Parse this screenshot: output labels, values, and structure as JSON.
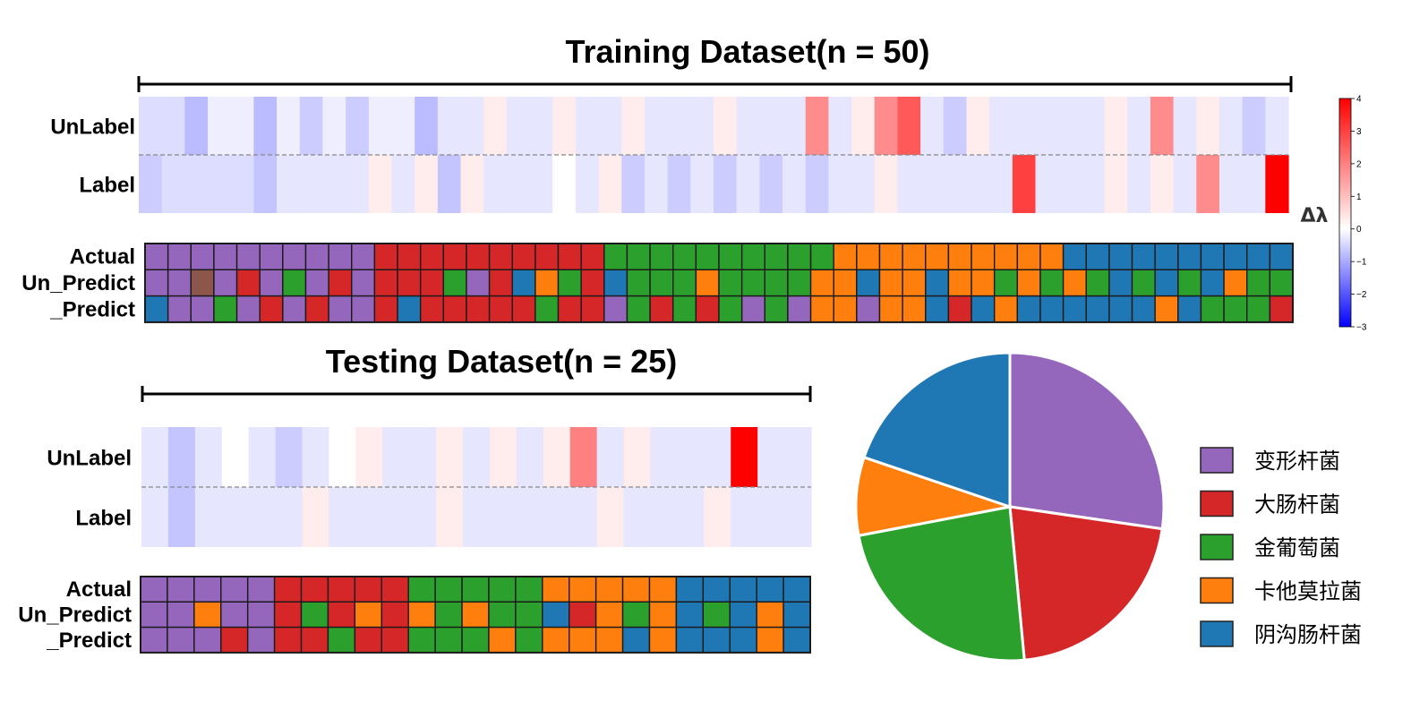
{
  "colors": {
    "变形杆菌": "#9467bd",
    "大肠杆菌": "#d62728",
    "金葡萄菌": "#2ca02c",
    "卡他莫拉菌": "#ff7f0e",
    "阴沟肠杆菌": "#1f77b4",
    "Brown": "#8c564b"
  },
  "chart_data": [
    {
      "type": "heatmap",
      "title": "Training Dataset(n = 50)",
      "row_labels": [
        "UnLabel",
        "Label"
      ],
      "colorbar": {
        "label": "Δλ",
        "range": [
          -3,
          4
        ],
        "ticks": [
          4,
          3,
          2,
          1,
          0,
          -1,
          -2,
          -3
        ],
        "tick_labels": [
          "4",
          "3",
          "2",
          "1",
          "0",
          "−1",
          "−2",
          "−3"
        ]
      },
      "values": {
        "UnLabel": [
          -0.4,
          -0.4,
          -0.8,
          -0.2,
          -0.2,
          -0.8,
          -0.2,
          -0.6,
          -0.2,
          -0.6,
          -0.2,
          -0.2,
          -0.8,
          -0.3,
          -0.3,
          0.3,
          -0.3,
          -0.3,
          0.3,
          -0.3,
          -0.3,
          0.3,
          -0.3,
          -0.3,
          -0.3,
          0.3,
          -0.3,
          -0.3,
          -0.3,
          1.8,
          -0.3,
          0.3,
          1.8,
          2.6,
          -0.3,
          -0.6,
          0.3,
          -0.3,
          -0.3,
          -0.3,
          -0.3,
          -0.3,
          0.3,
          -0.3,
          1.8,
          -0.3,
          0.3,
          -0.3,
          -0.6,
          -0.3
        ],
        "Label": [
          -0.6,
          -0.4,
          -0.4,
          -0.4,
          -0.4,
          -0.7,
          -0.3,
          -0.3,
          -0.3,
          -0.3,
          0.3,
          -0.3,
          0.3,
          -0.7,
          0.3,
          -0.3,
          -0.3,
          -0.3,
          0.0,
          -0.3,
          0.3,
          -0.6,
          -0.3,
          -0.6,
          -0.3,
          -0.6,
          -0.3,
          -0.6,
          -0.3,
          -0.6,
          -0.3,
          -0.3,
          0.3,
          -0.3,
          -0.3,
          -0.3,
          -0.3,
          -0.3,
          3.0,
          -0.3,
          -0.3,
          -0.3,
          0.3,
          -0.3,
          0.3,
          -0.3,
          1.8,
          -0.3,
          -0.3,
          4.0
        ]
      }
    },
    {
      "type": "table",
      "row_labels": [
        "Actual",
        "Un_Predict",
        "_Predict"
      ],
      "rows": {
        "Actual": [
          0,
          0,
          0,
          0,
          0,
          0,
          0,
          0,
          0,
          0,
          1,
          1,
          1,
          1,
          1,
          1,
          1,
          1,
          1,
          1,
          2,
          2,
          2,
          2,
          2,
          2,
          2,
          2,
          2,
          2,
          3,
          3,
          3,
          3,
          3,
          3,
          3,
          3,
          3,
          3,
          4,
          4,
          4,
          4,
          4,
          4,
          4,
          4,
          4,
          4
        ],
        "Un_Predict": [
          0,
          0,
          5,
          0,
          1,
          0,
          2,
          0,
          1,
          0,
          1,
          1,
          1,
          2,
          0,
          1,
          4,
          3,
          2,
          1,
          4,
          2,
          2,
          2,
          3,
          2,
          2,
          2,
          2,
          3,
          3,
          4,
          3,
          3,
          4,
          3,
          3,
          2,
          3,
          2,
          3,
          2,
          4,
          2,
          4,
          2,
          4,
          3,
          2,
          2
        ],
        "_Predict": [
          4,
          0,
          0,
          2,
          0,
          1,
          0,
          1,
          0,
          0,
          1,
          4,
          1,
          1,
          1,
          1,
          1,
          2,
          1,
          1,
          0,
          2,
          1,
          2,
          1,
          2,
          0,
          2,
          0,
          3,
          3,
          0,
          3,
          3,
          4,
          1,
          4,
          3,
          4,
          4,
          4,
          4,
          4,
          4,
          3,
          4,
          2,
          2,
          2,
          1
        ]
      },
      "category_index": [
        "变形杆菌",
        "大肠杆菌",
        "金葡萄菌",
        "卡他莫拉菌",
        "阴沟肠杆菌",
        "Brown"
      ]
    },
    {
      "type": "heatmap",
      "title": "Testing Dataset(n = 25)",
      "row_labels": [
        "UnLabel",
        "Label"
      ],
      "values": {
        "UnLabel": [
          -0.3,
          -0.7,
          -0.3,
          0.0,
          -0.3,
          -0.6,
          -0.3,
          0.0,
          0.3,
          -0.3,
          -0.3,
          0.3,
          -0.3,
          0.3,
          -0.3,
          0.3,
          2.0,
          -0.3,
          0.3,
          -0.3,
          -0.3,
          -0.3,
          4.0,
          -0.3,
          -0.3
        ],
        "Label": [
          -0.3,
          -0.7,
          -0.3,
          -0.3,
          -0.3,
          -0.3,
          0.3,
          -0.3,
          -0.3,
          -0.3,
          -0.3,
          0.3,
          -0.3,
          -0.3,
          -0.3,
          -0.3,
          -0.3,
          0.3,
          -0.3,
          -0.3,
          -0.3,
          0.3,
          -0.3,
          -0.3,
          -0.3
        ]
      }
    },
    {
      "type": "table",
      "row_labels": [
        "Actual",
        "Un_Predict",
        "_Predict"
      ],
      "rows": {
        "Actual": [
          0,
          0,
          0,
          0,
          0,
          1,
          1,
          1,
          1,
          1,
          2,
          2,
          2,
          2,
          2,
          3,
          3,
          3,
          3,
          3,
          4,
          4,
          4,
          4,
          4
        ],
        "Un_Predict": [
          0,
          0,
          3,
          0,
          0,
          1,
          2,
          1,
          3,
          1,
          3,
          2,
          3,
          2,
          2,
          4,
          1,
          3,
          2,
          3,
          4,
          2,
          4,
          3,
          4
        ],
        "_Predict": [
          0,
          0,
          0,
          1,
          0,
          1,
          1,
          2,
          1,
          1,
          2,
          2,
          2,
          3,
          2,
          3,
          3,
          3,
          4,
          3,
          4,
          4,
          4,
          3,
          4
        ]
      },
      "category_index": [
        "变形杆菌",
        "大肠杆菌",
        "金葡萄菌",
        "卡他莫拉菌",
        "阴沟肠杆菌"
      ]
    },
    {
      "type": "pie",
      "labels": [
        "变形杆菌",
        "大肠杆菌",
        "金葡萄菌",
        "卡他莫拉菌",
        "阴沟肠杆菌"
      ],
      "values": [
        27.3,
        21.2,
        23.5,
        8.2,
        19.8
      ]
    }
  ]
}
